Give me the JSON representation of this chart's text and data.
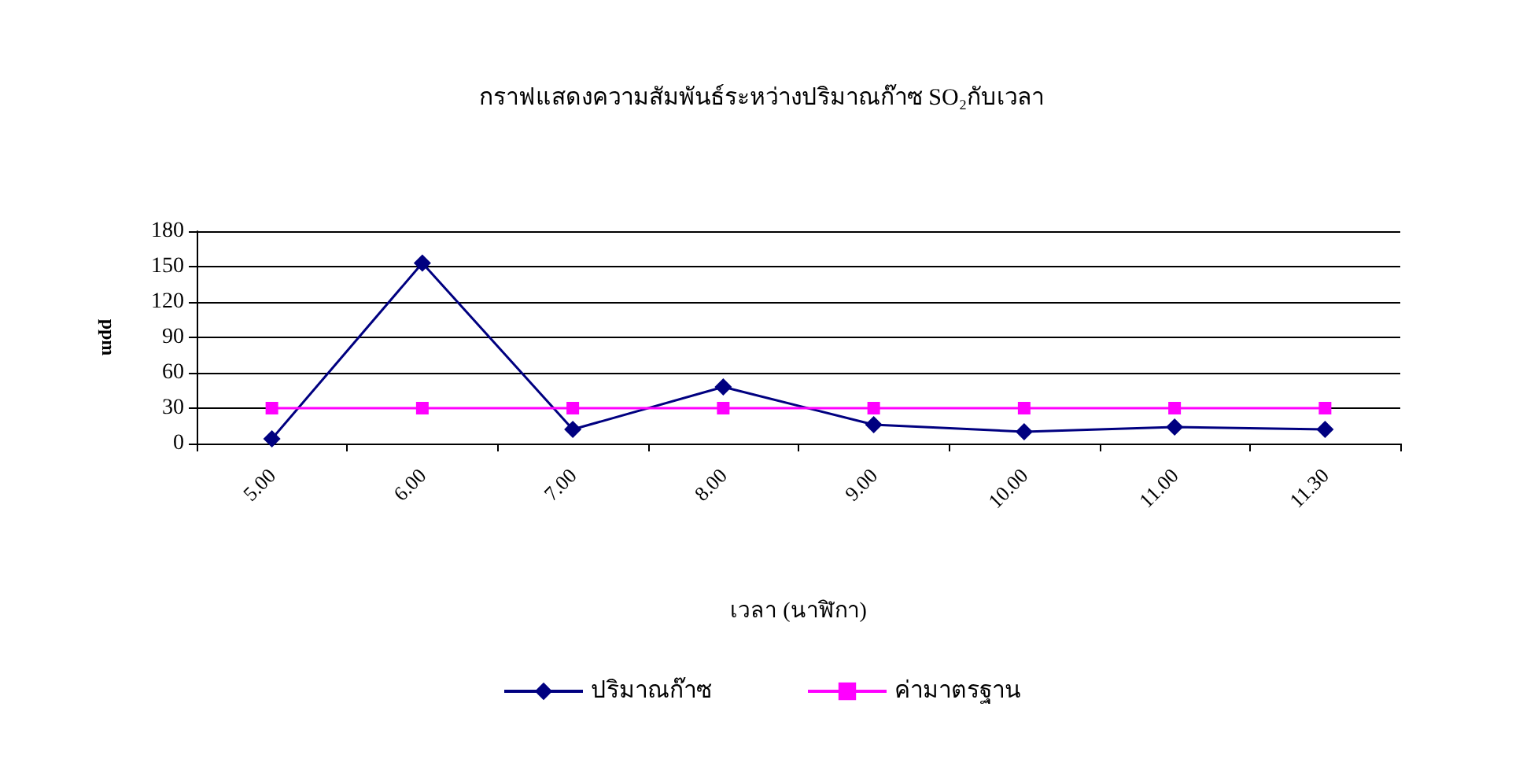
{
  "chart_data": {
    "type": "line",
    "title": "กราฟแสดงความสัมพันธ์ระหว่างปริมาณก๊าซ SO₂กับเวลา",
    "xlabel": "เวลา (นาฬิกา)",
    "ylabel": "ppm",
    "categories": [
      "5.00",
      "6.00",
      "7.00",
      "8.00",
      "9.00",
      "10.00",
      "11.00",
      "11.30"
    ],
    "series": [
      {
        "name": "ปริมาณก๊าซ",
        "color": "#000080",
        "marker": "diamond",
        "values": [
          4,
          153,
          12,
          48,
          16,
          10,
          14,
          12
        ]
      },
      {
        "name": "ค่ามาตรฐาน",
        "color": "#ff00ff",
        "marker": "square",
        "values": [
          30,
          30,
          30,
          30,
          30,
          30,
          30,
          30
        ]
      }
    ],
    "ylim": [
      0,
      180
    ],
    "yticks": [
      0,
      30,
      60,
      90,
      120,
      150,
      180
    ],
    "grid": "y",
    "legend": "bottom",
    "line_style": "solid"
  }
}
